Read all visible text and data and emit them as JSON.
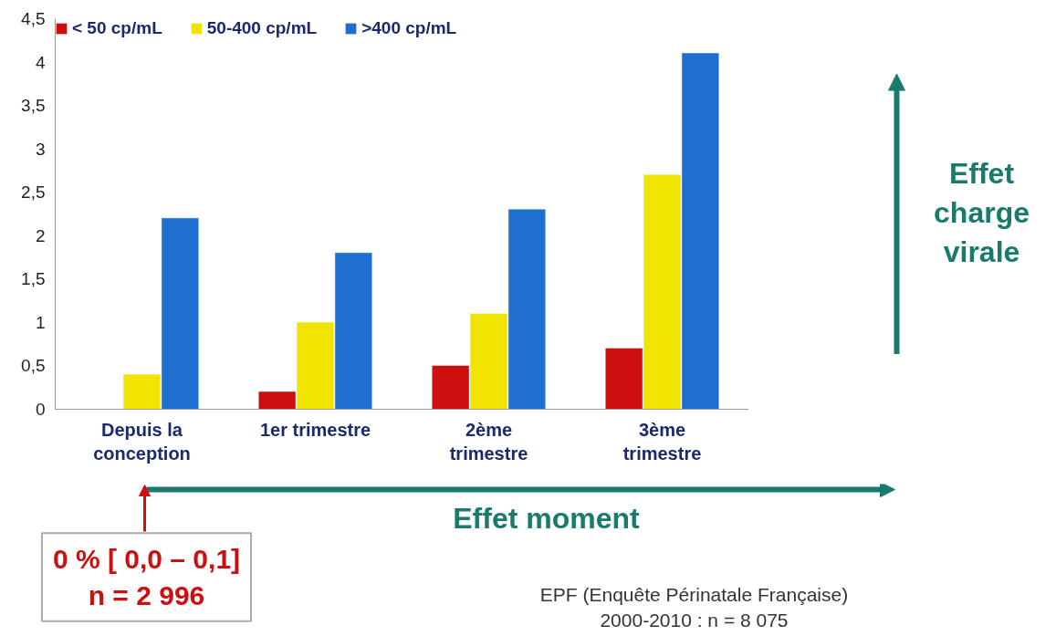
{
  "chart_data": {
    "type": "bar",
    "categories": [
      "Depuis la\nconception",
      "1er trimestre",
      "2ème\ntrimestre",
      "3ème\ntrimestre"
    ],
    "series": [
      {
        "name": "< 50 cp/mL",
        "color": "#cc1010",
        "values": [
          0,
          0.2,
          0.5,
          0.7
        ]
      },
      {
        "name": "50-400 cp/mL",
        "color": "#f0e400",
        "values": [
          0.4,
          1.0,
          1.1,
          2.7
        ]
      },
      {
        "name": ">400 cp/mL",
        "color": "#1f6fd0",
        "values": [
          2.2,
          1.8,
          2.3,
          4.1
        ]
      }
    ],
    "ylim": [
      0,
      4.5
    ],
    "yticks": [
      0,
      {
        "value": 0.5,
        "label": "0,5"
      },
      1,
      {
        "value": 1.5,
        "label": "1,5"
      },
      2,
      {
        "value": 2.5,
        "label": "2,5"
      },
      3,
      {
        "value": 3.5,
        "label": "3,5"
      },
      4,
      {
        "value": 4.5,
        "label": "4,5"
      }
    ],
    "grid": false,
    "legend": "top",
    "annotations": [
      "Effet\ncharge\nvirale",
      "Effet moment",
      "0 % [ 0,0 – 0,1]\nn = 2 996",
      "EPF (Enquête Périnatale Française)\n2000-2010 : n = 8 075"
    ]
  }
}
